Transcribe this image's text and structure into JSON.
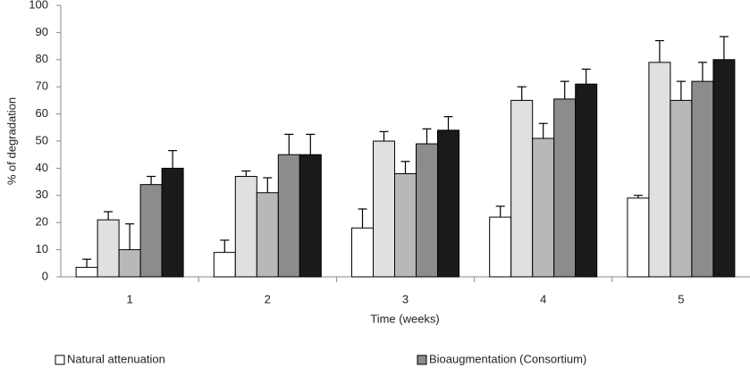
{
  "chart_data": {
    "type": "bar",
    "x_label": "Time (weeks)",
    "y_label": "% of degradation",
    "categories": [
      "1",
      "2",
      "3",
      "4",
      "5"
    ],
    "ylim": [
      0,
      100
    ],
    "yticks": [
      0,
      10,
      20,
      30,
      40,
      50,
      60,
      70,
      80,
      90,
      100
    ],
    "grid": false,
    "series": [
      {
        "name": "Natural attenuation",
        "color": "#ffffff",
        "values": [
          3.5,
          9,
          18,
          22,
          29
        ],
        "errors": [
          3,
          4.5,
          7,
          4,
          1
        ]
      },
      {
        "color": "#e0e0e0",
        "values": [
          21,
          37,
          50,
          65,
          79
        ],
        "errors": [
          3,
          2,
          3.5,
          5,
          8
        ]
      },
      {
        "color": "#b8b8b8",
        "values": [
          10,
          31,
          38,
          51,
          65
        ],
        "errors": [
          9.5,
          5.5,
          4.5,
          5.5,
          7
        ]
      },
      {
        "name": "Bioaugmentation (Consortium)",
        "color": "#8c8c8c",
        "values": [
          34,
          45,
          49,
          65.5,
          72
        ],
        "errors": [
          3,
          7.5,
          5.5,
          6.5,
          7
        ]
      },
      {
        "color": "#1a1a1a",
        "values": [
          40,
          45,
          54,
          71,
          80
        ],
        "errors": [
          6.5,
          7.5,
          5,
          5.5,
          8.5
        ]
      }
    ]
  }
}
